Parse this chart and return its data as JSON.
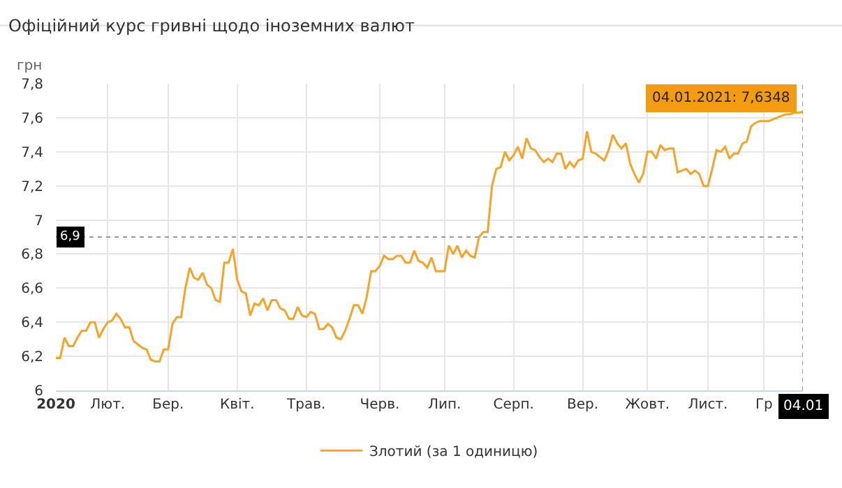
{
  "chart_data": {
    "type": "line",
    "title": "Офіційний курс гривні щодо іноземних валют",
    "ylabel": "грн",
    "categories": [
      "2020",
      null,
      null,
      null,
      null,
      null,
      null,
      null,
      null,
      null,
      null,
      null,
      "Лют.",
      null,
      null,
      null,
      null,
      null,
      null,
      null,
      null,
      null,
      null,
      null,
      null,
      null,
      "Бер.",
      null,
      null,
      null,
      null,
      null,
      null,
      null,
      null,
      null,
      null,
      null,
      null,
      null,
      null,
      null,
      "Квіт.",
      null,
      null,
      null,
      null,
      null,
      null,
      null,
      null,
      null,
      null,
      null,
      null,
      null,
      null,
      null,
      "Трав.",
      null,
      null,
      null,
      null,
      null,
      null,
      null,
      null,
      null,
      null,
      null,
      null,
      null,
      null,
      null,
      null,
      "Черв.",
      null,
      null,
      null,
      null,
      null,
      null,
      null,
      null,
      null,
      null,
      null,
      null,
      null,
      null,
      "Лип.",
      null,
      null,
      null,
      null,
      null,
      null,
      null,
      null,
      null,
      null,
      null,
      null,
      null,
      null,
      null,
      "Серп.",
      null,
      null,
      null,
      null,
      null,
      null,
      null,
      null,
      null,
      null,
      null,
      null,
      null,
      null,
      null,
      "Вер.",
      null,
      null,
      null,
      null,
      null,
      null,
      null,
      null,
      null,
      null,
      null,
      null,
      null,
      null,
      "Жовт.",
      null,
      null,
      null,
      null,
      null,
      null,
      null,
      null,
      null,
      null,
      null,
      null,
      null,
      "Лист.",
      null,
      null,
      null,
      null,
      null,
      null,
      null,
      null,
      null,
      null,
      null,
      null,
      "Гр",
      null,
      null,
      null,
      null,
      null,
      null,
      null,
      null,
      "04.01"
    ],
    "ylim": [
      6,
      7.8
    ],
    "yticks": [
      6,
      {
        "value": 6.2,
        "label": "6,2"
      },
      {
        "value": 6.4,
        "label": "6,4"
      },
      {
        "value": 6.6,
        "label": "6,6"
      },
      {
        "value": 6.8,
        "label": "6,8"
      },
      7,
      {
        "value": 7.2,
        "label": "7,2"
      },
      {
        "value": 7.4,
        "label": "7,4"
      },
      {
        "value": 7.6,
        "label": "7,6"
      },
      {
        "value": 7.8,
        "label": "7,8"
      }
    ],
    "grid": true,
    "legend": "bottom",
    "marker": "none",
    "line_style": "solid",
    "series": [
      {
        "name": "Злотий (за 1 одиницю)",
        "color": "#f7a325",
        "values": [
          6.19,
          6.19,
          6.31,
          6.26,
          6.26,
          6.31,
          6.35,
          6.35,
          6.4,
          6.4,
          6.31,
          6.36,
          6.4,
          6.41,
          6.45,
          6.42,
          6.37,
          6.37,
          6.29,
          6.27,
          6.25,
          6.24,
          6.18,
          6.17,
          6.17,
          6.24,
          6.24,
          6.39,
          6.43,
          6.43,
          6.6,
          6.72,
          6.66,
          6.65,
          6.69,
          6.62,
          6.6,
          6.53,
          6.52,
          6.75,
          6.75,
          6.83,
          6.65,
          6.58,
          6.57,
          6.44,
          6.51,
          6.5,
          6.54,
          6.47,
          6.53,
          6.53,
          6.48,
          6.47,
          6.42,
          6.42,
          6.49,
          6.44,
          6.43,
          6.46,
          6.45,
          6.36,
          6.36,
          6.39,
          6.37,
          6.31,
          6.3,
          6.35,
          6.42,
          6.5,
          6.5,
          6.45,
          6.55,
          6.7,
          6.7,
          6.73,
          6.79,
          6.77,
          6.77,
          6.79,
          6.79,
          6.75,
          6.75,
          6.82,
          6.76,
          6.75,
          6.72,
          6.78,
          6.7,
          6.7,
          6.7,
          6.85,
          6.8,
          6.85,
          6.78,
          6.82,
          6.79,
          6.78,
          6.9,
          6.93,
          6.93,
          7.2,
          7.3,
          7.31,
          7.4,
          7.35,
          7.38,
          7.43,
          7.36,
          7.48,
          7.42,
          7.41,
          7.37,
          7.34,
          7.36,
          7.34,
          7.39,
          7.39,
          7.3,
          7.34,
          7.31,
          7.35,
          7.36,
          7.52,
          7.4,
          7.39,
          7.37,
          7.35,
          7.41,
          7.5,
          7.45,
          7.42,
          7.45,
          7.33,
          7.27,
          7.22,
          7.27,
          7.4,
          7.4,
          7.36,
          7.44,
          7.41,
          7.42,
          7.42,
          7.28,
          7.29,
          7.3,
          7.27,
          7.29,
          7.27,
          7.2,
          7.2,
          7.3,
          7.41,
          7.4,
          7.43,
          7.36,
          7.39,
          7.39,
          7.45,
          7.46,
          7.55,
          7.57,
          7.58,
          7.58,
          7.58,
          7.59,
          7.6,
          7.61,
          7.62,
          7.62,
          7.63,
          7.63,
          7.6348
        ]
      }
    ],
    "ref_lines": [
      {
        "axis": "y",
        "value": 6.9,
        "label": "6,9",
        "line_style": "dotted"
      },
      {
        "axis": "x",
        "value": "04.01",
        "line_style": "dotted"
      }
    ],
    "annotations": [
      {
        "text": "04.01.2021: 7,6348",
        "x": "04.01",
        "y": 7.6348
      }
    ]
  }
}
